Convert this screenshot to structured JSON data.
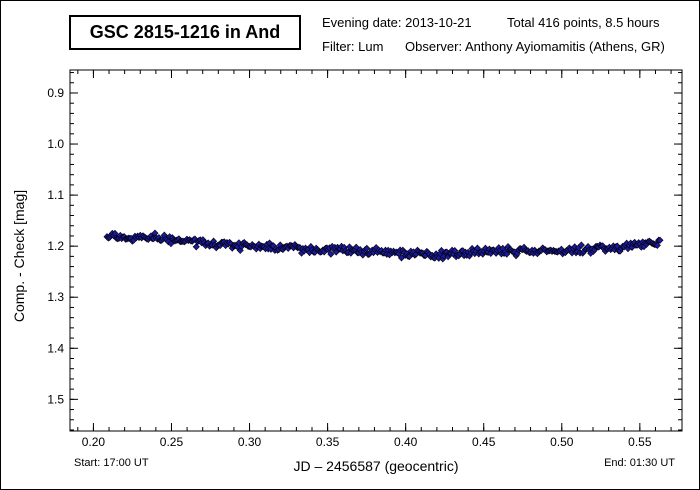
{
  "header": {
    "title": "GSC 2815-1216 in And",
    "evening_date": "Evening date: 2013-10-21",
    "total": "Total 416 points, 8.5 hours",
    "filter": "Filter: Lum",
    "observer": "Observer: Anthony Ayiomamitis (Athens, GR)"
  },
  "footer": {
    "start": "Start: 17:00 UT",
    "end": "End: 01:30 UT"
  },
  "colors": {
    "marker_fill": "#1a1aa0",
    "marker_edge": "#000000",
    "error_bar": "#d98ad9"
  },
  "chart_data": {
    "type": "scatter",
    "title": "GSC 2815-1216 in And",
    "xlabel": "JD – 2456587  (geocentric)",
    "ylabel": "Comp. - Check [mag]",
    "xlim": [
      0.185,
      0.577
    ],
    "ylim": [
      1.562,
      0.855
    ],
    "y_inverted": true,
    "x_ticks": [
      0.2,
      0.25,
      0.3,
      0.35,
      0.4,
      0.45,
      0.5,
      0.55
    ],
    "x_tick_labels": [
      "0.20",
      "0.25",
      "0.30",
      "0.35",
      "0.40",
      "0.45",
      "0.50",
      "0.55"
    ],
    "y_ticks": [
      0.9,
      1.0,
      1.1,
      1.2,
      1.3,
      1.4,
      1.5
    ],
    "y_tick_labels": [
      "0.9",
      "1.0",
      "1.1",
      "1.2",
      "1.3",
      "1.4",
      "1.5"
    ],
    "grid": false,
    "x_start": 0.2087,
    "x_end": 0.5629,
    "n_points": 416,
    "trend": [
      {
        "x": 0.209,
        "y": 1.181
      },
      {
        "x": 0.24,
        "y": 1.186
      },
      {
        "x": 0.275,
        "y": 1.195
      },
      {
        "x": 0.32,
        "y": 1.203
      },
      {
        "x": 0.36,
        "y": 1.208
      },
      {
        "x": 0.4,
        "y": 1.213
      },
      {
        "x": 0.42,
        "y": 1.219
      },
      {
        "x": 0.45,
        "y": 1.211
      },
      {
        "x": 0.5,
        "y": 1.209
      },
      {
        "x": 0.53,
        "y": 1.203
      },
      {
        "x": 0.563,
        "y": 1.193
      }
    ],
    "scatter_amplitude": 0.009
  }
}
